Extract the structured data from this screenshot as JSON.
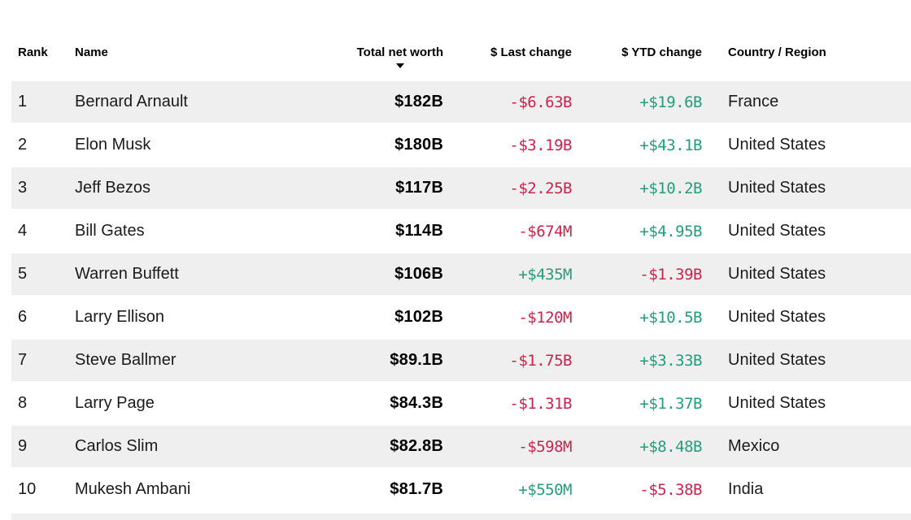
{
  "table": {
    "headers": {
      "rank": "Rank",
      "name": "Name",
      "net_worth": "Total net worth",
      "last_change": "$ Last change",
      "ytd_change": "$ YTD change",
      "country": "Country / Region"
    },
    "sort": {
      "column": "Total net worth",
      "direction": "descending",
      "icon": "sort-desc-arrow"
    },
    "rows": [
      {
        "rank": "1",
        "name": "Bernard Arnault",
        "net_worth": "$182B",
        "last_change": "-$6.63B",
        "ytd_change": "+$19.6B",
        "country": "France"
      },
      {
        "rank": "2",
        "name": "Elon Musk",
        "net_worth": "$180B",
        "last_change": "-$3.19B",
        "ytd_change": "+$43.1B",
        "country": "United States"
      },
      {
        "rank": "3",
        "name": "Jeff Bezos",
        "net_worth": "$117B",
        "last_change": "-$2.25B",
        "ytd_change": "+$10.2B",
        "country": "United States"
      },
      {
        "rank": "4",
        "name": "Bill Gates",
        "net_worth": "$114B",
        "last_change": "-$674M",
        "ytd_change": "+$4.95B",
        "country": "United States"
      },
      {
        "rank": "5",
        "name": "Warren Buffett",
        "net_worth": "$106B",
        "last_change": "+$435M",
        "ytd_change": "-$1.39B",
        "country": "United States"
      },
      {
        "rank": "6",
        "name": "Larry Ellison",
        "net_worth": "$102B",
        "last_change": "-$120M",
        "ytd_change": "+$10.5B",
        "country": "United States"
      },
      {
        "rank": "7",
        "name": "Steve Ballmer",
        "net_worth": "$89.1B",
        "last_change": "-$1.75B",
        "ytd_change": "+$3.33B",
        "country": "United States"
      },
      {
        "rank": "8",
        "name": "Larry Page",
        "net_worth": "$84.3B",
        "last_change": "-$1.31B",
        "ytd_change": "+$1.37B",
        "country": "United States"
      },
      {
        "rank": "9",
        "name": "Carlos Slim",
        "net_worth": "$82.8B",
        "last_change": "-$598M",
        "ytd_change": "+$8.48B",
        "country": "Mexico"
      },
      {
        "rank": "10",
        "name": "Mukesh Ambani",
        "net_worth": "$81.7B",
        "last_change": "+$550M",
        "ytd_change": "-$5.38B",
        "country": "India"
      }
    ]
  },
  "colors": {
    "positive": "#239e7a",
    "negative": "#cd234b",
    "stripe": "#efefef"
  }
}
